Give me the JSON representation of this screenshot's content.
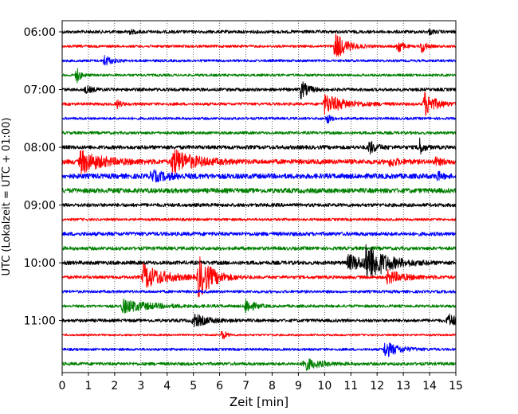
{
  "chart_data": {
    "type": "line",
    "title": "",
    "xlabel": "Zeit  [min]",
    "ylabel": "UTC (Lokalzeit = UTC + 01:00)",
    "xlim": [
      0,
      15
    ],
    "x_ticks": [
      0,
      1,
      2,
      3,
      4,
      5,
      6,
      7,
      8,
      9,
      10,
      11,
      12,
      13,
      14,
      15
    ],
    "x_tick_labels": [
      "0",
      "1",
      "2",
      "3",
      "4",
      "5",
      "6",
      "7",
      "8",
      "9",
      "10",
      "11",
      "12",
      "13",
      "14",
      "15"
    ],
    "y_tick_labels": [
      "06:00",
      "07:00",
      "08:00",
      "09:00",
      "10:00",
      "11:00"
    ],
    "grid": "vertical dotted at each minute",
    "trace_interval_minutes": 15,
    "colors_cycle": [
      "#000000",
      "#ff0000",
      "#0000ff",
      "#008000"
    ],
    "traces": [
      {
        "start": "06:00",
        "color": "#000000",
        "noise": 2.0,
        "events": [
          [
            2.5,
            3,
            1.5
          ],
          [
            14.0,
            3,
            1
          ]
        ]
      },
      {
        "start": "06:15",
        "color": "#ff0000",
        "noise": 1.6,
        "events": [
          [
            10.4,
            18,
            3
          ],
          [
            12.8,
            11,
            1
          ],
          [
            13.7,
            9,
            1
          ]
        ]
      },
      {
        "start": "06:30",
        "color": "#0000ff",
        "noise": 1.6,
        "events": [
          [
            1.6,
            7,
            2
          ]
        ]
      },
      {
        "start": "06:45",
        "color": "#008000",
        "noise": 1.6,
        "events": [
          [
            0.55,
            10,
            1
          ]
        ]
      },
      {
        "start": "07:00",
        "color": "#000000",
        "noise": 2.0,
        "events": [
          [
            0.9,
            4,
            2
          ],
          [
            9.1,
            11,
            2
          ]
        ]
      },
      {
        "start": "07:15",
        "color": "#ff0000",
        "noise": 1.8,
        "events": [
          [
            10.0,
            12,
            6
          ],
          [
            13.8,
            16,
            3
          ],
          [
            2.1,
            5,
            1
          ]
        ]
      },
      {
        "start": "07:30",
        "color": "#0000ff",
        "noise": 1.6,
        "events": [
          [
            10.1,
            6,
            1
          ]
        ]
      },
      {
        "start": "07:45",
        "color": "#008000",
        "noise": 1.8,
        "events": []
      },
      {
        "start": "08:00",
        "color": "#000000",
        "noise": 2.4,
        "events": [
          [
            11.7,
            8,
            2
          ],
          [
            13.6,
            12,
            1
          ]
        ]
      },
      {
        "start": "08:15",
        "color": "#ff0000",
        "noise": 3.0,
        "events": [
          [
            0.7,
            14,
            6
          ],
          [
            4.2,
            16,
            6
          ],
          [
            12.5,
            5,
            2
          ],
          [
            14.2,
            4,
            2
          ]
        ]
      },
      {
        "start": "08:30",
        "color": "#0000ff",
        "noise": 3.2,
        "events": [
          [
            3.4,
            6,
            5
          ],
          [
            14.3,
            5,
            1
          ]
        ]
      },
      {
        "start": "08:45",
        "color": "#008000",
        "noise": 3.0,
        "events": []
      },
      {
        "start": "09:00",
        "color": "#000000",
        "noise": 2.2,
        "events": []
      },
      {
        "start": "09:15",
        "color": "#ff0000",
        "noise": 1.6,
        "events": []
      },
      {
        "start": "09:30",
        "color": "#0000ff",
        "noise": 2.4,
        "events": []
      },
      {
        "start": "09:45",
        "color": "#008000",
        "noise": 2.2,
        "events": []
      },
      {
        "start": "10:00",
        "color": "#000000",
        "noise": 2.4,
        "events": [
          [
            10.9,
            9,
            8
          ],
          [
            11.6,
            22,
            5
          ]
        ]
      },
      {
        "start": "10:15",
        "color": "#ff0000",
        "noise": 2.0,
        "events": [
          [
            3.1,
            16,
            6
          ],
          [
            5.2,
            26,
            4
          ],
          [
            12.4,
            8,
            5
          ]
        ]
      },
      {
        "start": "10:30",
        "color": "#0000ff",
        "noise": 1.8,
        "events": []
      },
      {
        "start": "10:45",
        "color": "#008000",
        "noise": 1.8,
        "events": [
          [
            2.3,
            8,
            8
          ],
          [
            7.0,
            10,
            2
          ]
        ]
      },
      {
        "start": "11:00",
        "color": "#000000",
        "noise": 2.0,
        "events": [
          [
            5.0,
            8,
            4
          ],
          [
            14.7,
            8,
            3
          ]
        ]
      },
      {
        "start": "11:15",
        "color": "#ff0000",
        "noise": 1.2,
        "events": [
          [
            6.1,
            7,
            1
          ]
        ]
      },
      {
        "start": "11:30",
        "color": "#0000ff",
        "noise": 1.6,
        "events": [
          [
            12.3,
            10,
            4
          ]
        ]
      },
      {
        "start": "11:45",
        "color": "#008000",
        "noise": 2.0,
        "events": [
          [
            9.2,
            8,
            4
          ]
        ]
      }
    ]
  }
}
